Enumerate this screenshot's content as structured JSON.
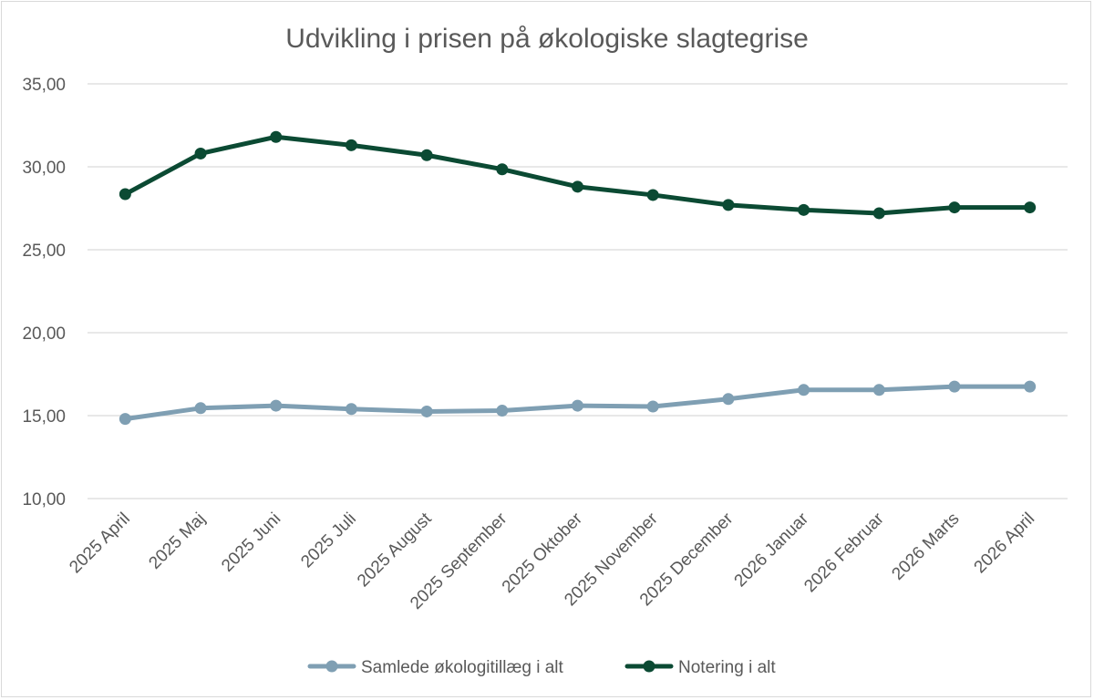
{
  "chart_data": {
    "type": "line",
    "title": "Udvikling i prisen på økologiske slagtegrise",
    "xlabel": "",
    "ylabel": "",
    "ylim": [
      10,
      35
    ],
    "yticks": [
      "10,00",
      "15,00",
      "20,00",
      "25,00",
      "30,00",
      "35,00"
    ],
    "grid": true,
    "legend_position": "bottom",
    "categories": [
      "2025 April",
      "2025 Maj",
      "2025 Juni",
      "2025 Juli",
      "2025 August",
      "2025 September",
      "2025 Oktober",
      "2025 November",
      "2025 December",
      "2026 Januar",
      "2026 Februar",
      "2026 Marts",
      "2026 April"
    ],
    "series": [
      {
        "name": "Samlede økologitillæg i alt",
        "color": "#7f9fb3",
        "values": [
          14.8,
          15.45,
          15.6,
          15.4,
          15.25,
          15.3,
          15.6,
          15.55,
          16.0,
          16.55,
          16.55,
          16.75,
          16.75
        ]
      },
      {
        "name": "Notering i alt",
        "color": "#0b4a33",
        "values": [
          28.35,
          30.8,
          31.8,
          31.3,
          30.7,
          29.85,
          28.8,
          28.3,
          27.7,
          27.4,
          27.2,
          27.55,
          27.55
        ]
      }
    ]
  }
}
